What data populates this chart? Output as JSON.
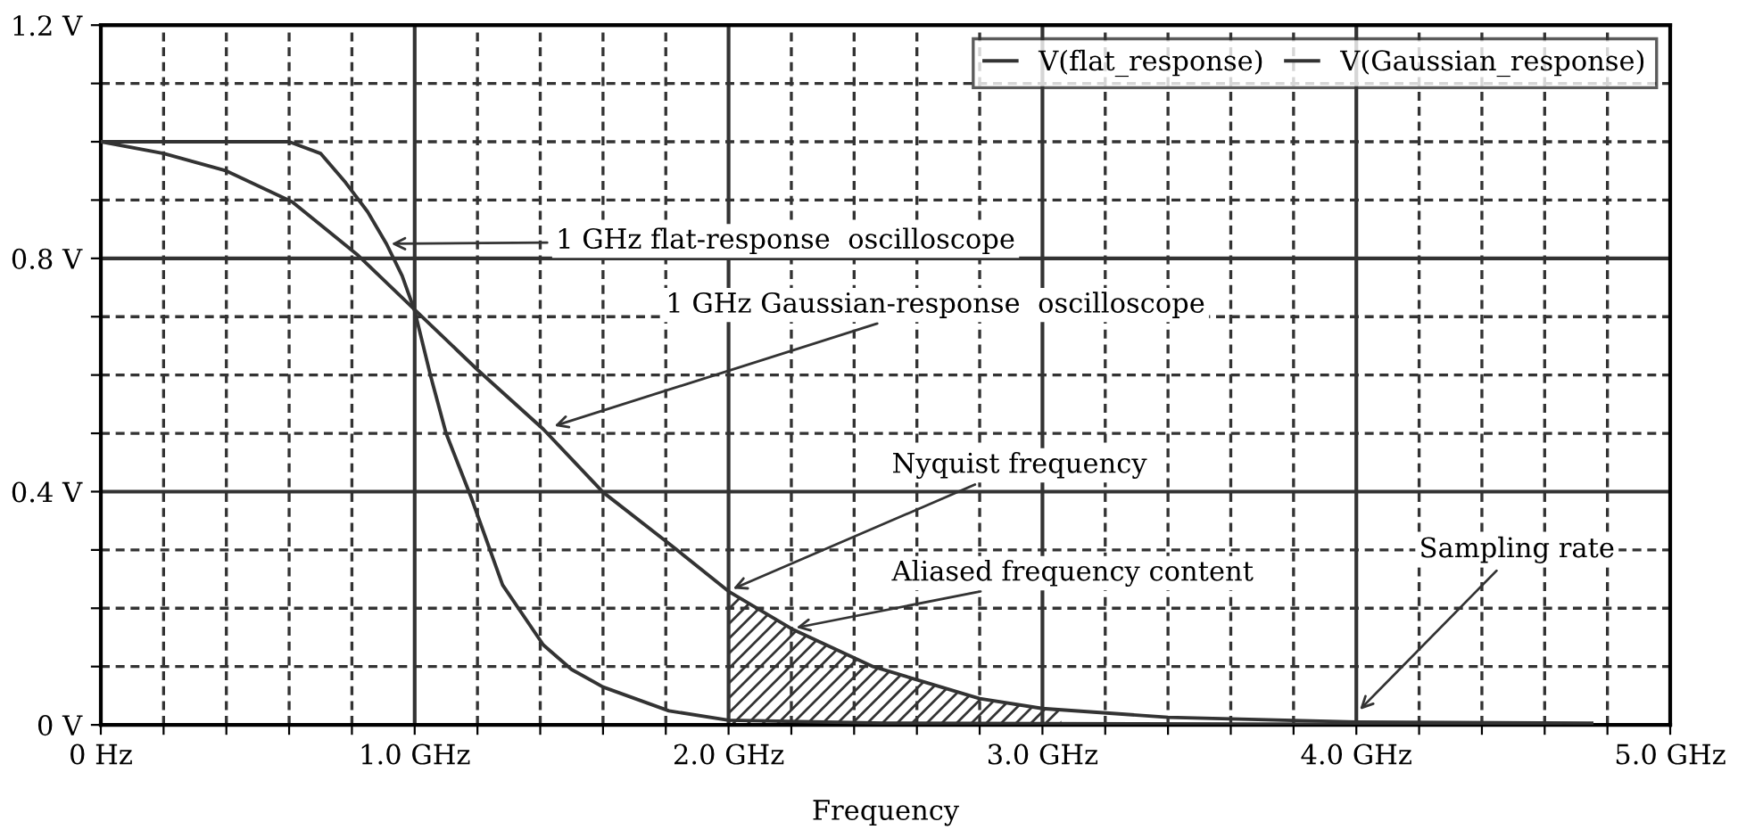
{
  "chart_data": {
    "type": "line",
    "xlabel": "Frequency",
    "xlim": [
      0,
      5
    ],
    "ylim": [
      0,
      1.2
    ],
    "xticks": [
      {
        "value": 0,
        "label": "0 Hz"
      },
      {
        "value": 0.2,
        "label": null
      },
      {
        "value": 0.4,
        "label": null
      },
      {
        "value": 0.6,
        "label": null
      },
      {
        "value": 0.8,
        "label": null
      },
      {
        "value": 1,
        "label": "1.0 GHz"
      },
      {
        "value": 1.2,
        "label": null
      },
      {
        "value": 1.4,
        "label": null
      },
      {
        "value": 1.6,
        "label": null
      },
      {
        "value": 1.8,
        "label": null
      },
      {
        "value": 2,
        "label": "2.0 GHz"
      },
      {
        "value": 2.2,
        "label": null
      },
      {
        "value": 2.4,
        "label": null
      },
      {
        "value": 2.6,
        "label": null
      },
      {
        "value": 2.8,
        "label": null
      },
      {
        "value": 3,
        "label": "3.0 GHz"
      },
      {
        "value": 3.2,
        "label": null
      },
      {
        "value": 3.4,
        "label": null
      },
      {
        "value": 3.6,
        "label": null
      },
      {
        "value": 3.8,
        "label": null
      },
      {
        "value": 4,
        "label": "4.0 GHz"
      },
      {
        "value": 4.2,
        "label": null
      },
      {
        "value": 4.4,
        "label": null
      },
      {
        "value": 4.6,
        "label": null
      },
      {
        "value": 4.8,
        "label": null
      },
      {
        "value": 5,
        "label": "5.0 GHz"
      }
    ],
    "yticks": [
      {
        "value": 0,
        "label": "0 V"
      },
      {
        "value": 0.1,
        "label": null
      },
      {
        "value": 0.2,
        "label": null
      },
      {
        "value": 0.3,
        "label": null
      },
      {
        "value": 0.4,
        "label": "0.4 V"
      },
      {
        "value": 0.5,
        "label": null
      },
      {
        "value": 0.6,
        "label": null
      },
      {
        "value": 0.7,
        "label": null
      },
      {
        "value": 0.8,
        "label": "0.8 V"
      },
      {
        "value": 0.9,
        "label": null
      },
      {
        "value": 1.0,
        "label": null
      },
      {
        "value": 1.1,
        "label": null
      },
      {
        "value": 1.2,
        "label": "1.2 V"
      }
    ],
    "grid": true,
    "legend": "top right",
    "marker": "none",
    "line_style": "solid",
    "series": [
      {
        "name": "V(flat_response)",
        "color": "#333333",
        "x": [
          0,
          0.3,
          0.6,
          0.7,
          0.78,
          0.85,
          0.91,
          0.96,
          1.0,
          1.05,
          1.1,
          1.18,
          1.28,
          1.41,
          1.5,
          1.6,
          1.81,
          2.0,
          2.5,
          3.0,
          4.0,
          4.65
        ],
        "values": [
          1.0,
          1.0,
          1.0,
          0.98,
          0.93,
          0.88,
          0.825,
          0.77,
          0.71,
          0.6,
          0.5,
          0.39,
          0.24,
          0.137,
          0.095,
          0.065,
          0.024,
          0.008,
          0.003,
          0.002,
          0.001,
          0.001
        ]
      },
      {
        "name": "V(Gaussian_response)",
        "color": "#333333",
        "x": [
          0,
          0.2,
          0.4,
          0.61,
          0.82,
          1.0,
          1.2,
          1.41,
          1.6,
          1.81,
          2.0,
          2.2,
          2.46,
          2.8,
          3.0,
          3.4,
          4.0,
          4.75
        ],
        "values": [
          1.0,
          0.98,
          0.95,
          0.897,
          0.805,
          0.712,
          0.609,
          0.507,
          0.399,
          0.311,
          0.229,
          0.165,
          0.1,
          0.045,
          0.028,
          0.013,
          0.005,
          0.003
        ]
      },
      {
        "type": "area",
        "color": "#333333",
        "x": [
          2.0,
          2.2,
          2.46,
          2.8,
          3.0,
          3.06
        ],
        "values": [
          0.229,
          0.165,
          0.1,
          0.045,
          0.028,
          0.025
        ]
      }
    ],
    "annotations": [
      {
        "text": "1 GHz flat-response  oscilloscope",
        "x": 0.91,
        "y": 0.825
      },
      {
        "text": "1 GHz Gaussian-response  oscilloscope",
        "x": 1.43,
        "y": 0.51
      },
      {
        "text": "Nyquist frequency",
        "x": 2.0,
        "y": 0.23
      },
      {
        "text": "Aliased frequency content",
        "x": 2.2,
        "y": 0.165
      },
      {
        "text": "Sampling rate",
        "x": 4.0,
        "y": 0.02
      }
    ]
  }
}
